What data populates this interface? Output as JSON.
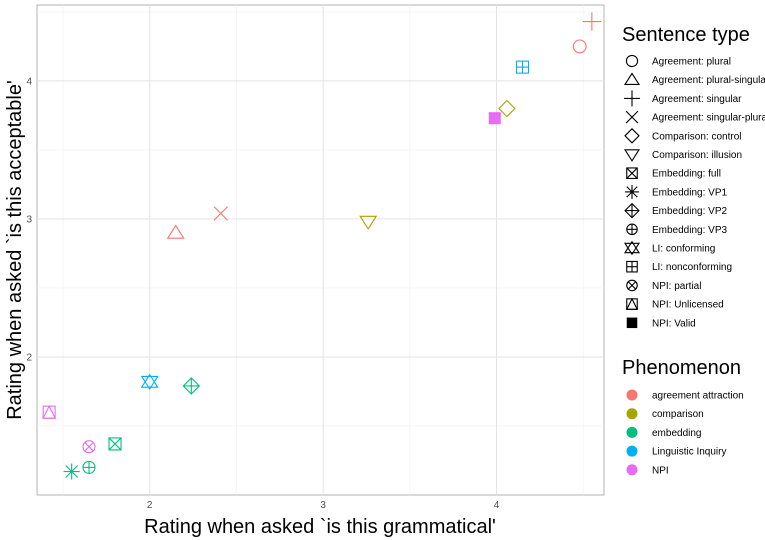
{
  "chart_data": {
    "type": "scatter",
    "xlabel": "Rating when asked `is this grammatical'",
    "ylabel": "Rating when asked `is this acceptable'",
    "xlim": [
      1.35,
      4.62
    ],
    "ylim": [
      1.0,
      4.55
    ],
    "x_ticks": [
      {
        "value": 2,
        "label": "2"
      },
      {
        "value": 3,
        "label": "3"
      },
      {
        "value": 4,
        "label": "4"
      }
    ],
    "y_ticks": [
      {
        "value": 2,
        "label": "2"
      },
      {
        "value": 3,
        "label": "3"
      },
      {
        "value": 4,
        "label": "4"
      }
    ],
    "grid": true,
    "legend_position": "right",
    "shape_legend": {
      "title": "Sentence type",
      "items": [
        {
          "label": "Agreement: plural",
          "shape": "circle"
        },
        {
          "label": "Agreement: plural-singular",
          "shape": "triangle-up"
        },
        {
          "label": "Agreement: singular",
          "shape": "plus"
        },
        {
          "label": "Agreement: singular-plural",
          "shape": "cross"
        },
        {
          "label": "Comparison: control",
          "shape": "diamond"
        },
        {
          "label": "Comparison: illusion",
          "shape": "triangle-down"
        },
        {
          "label": "Embedding: full",
          "shape": "square-cross"
        },
        {
          "label": "Embedding: VP1",
          "shape": "asterisk"
        },
        {
          "label": "Embedding: VP2",
          "shape": "diamond-plus"
        },
        {
          "label": "Embedding: VP3",
          "shape": "circle-plus"
        },
        {
          "label": "LI: conforming",
          "shape": "star-of-david"
        },
        {
          "label": "LI: nonconforming",
          "shape": "square-plus"
        },
        {
          "label": "NPI: partial",
          "shape": "circle-cross"
        },
        {
          "label": "NPI: Unlicensed",
          "shape": "square-triangle"
        },
        {
          "label": "NPI: Valid",
          "shape": "filled-square"
        }
      ]
    },
    "color_legend": {
      "title": "Phenomenon",
      "items": [
        {
          "label": "agreement attraction",
          "color": "#F8766D"
        },
        {
          "label": "comparison",
          "color": "#A3A500"
        },
        {
          "label": "embedding",
          "color": "#00BF7D"
        },
        {
          "label": "Linguistic Inquiry",
          "color": "#00B0F6"
        },
        {
          "label": "NPI",
          "color": "#E76BF3"
        }
      ]
    },
    "points": [
      {
        "sentence_type": "Agreement: plural",
        "phenomenon": "agreement attraction",
        "x": 4.48,
        "y": 4.25
      },
      {
        "sentence_type": "Agreement: plural-singular",
        "phenomenon": "agreement attraction",
        "x": 2.15,
        "y": 2.9
      },
      {
        "sentence_type": "Agreement: singular",
        "phenomenon": "agreement attraction",
        "x": 4.55,
        "y": 4.43
      },
      {
        "sentence_type": "Agreement: singular-plural",
        "phenomenon": "agreement attraction",
        "x": 2.41,
        "y": 3.04
      },
      {
        "sentence_type": "Comparison: control",
        "phenomenon": "comparison",
        "x": 4.06,
        "y": 3.8
      },
      {
        "sentence_type": "Comparison: illusion",
        "phenomenon": "comparison",
        "x": 3.26,
        "y": 2.98
      },
      {
        "sentence_type": "Embedding: full",
        "phenomenon": "embedding",
        "x": 1.8,
        "y": 1.37
      },
      {
        "sentence_type": "Embedding: VP1",
        "phenomenon": "embedding",
        "x": 1.55,
        "y": 1.17
      },
      {
        "sentence_type": "Embedding: VP2",
        "phenomenon": "embedding",
        "x": 2.24,
        "y": 1.79
      },
      {
        "sentence_type": "Embedding: VP3",
        "phenomenon": "embedding",
        "x": 1.65,
        "y": 1.2
      },
      {
        "sentence_type": "LI: conforming",
        "phenomenon": "Linguistic Inquiry",
        "x": 2.0,
        "y": 1.82
      },
      {
        "sentence_type": "LI: nonconforming",
        "phenomenon": "Linguistic Inquiry",
        "x": 4.15,
        "y": 4.1
      },
      {
        "sentence_type": "NPI: partial",
        "phenomenon": "NPI",
        "x": 1.65,
        "y": 1.35
      },
      {
        "sentence_type": "NPI: Unlicensed",
        "phenomenon": "NPI",
        "x": 1.42,
        "y": 1.6
      },
      {
        "sentence_type": "NPI: Valid",
        "phenomenon": "NPI",
        "x": 3.99,
        "y": 3.73
      }
    ]
  }
}
